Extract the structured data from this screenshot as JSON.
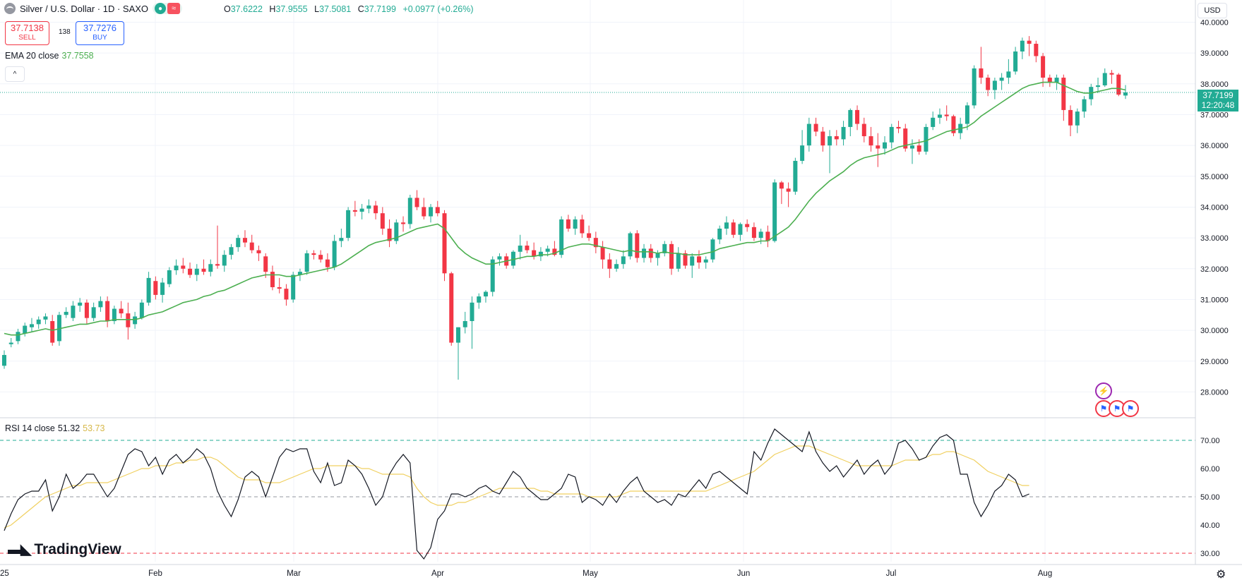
{
  "header": {
    "symbol_title": "Silver / U.S. Dollar · 1D · SAXO",
    "market_status_icon": "●",
    "market_closed_icon": "≈",
    "ohlc": {
      "o_label": "O",
      "o": "37.6222",
      "h_label": "H",
      "h": "37.9555",
      "l_label": "L",
      "l": "37.5081",
      "c_label": "C",
      "c": "37.7199",
      "change": "+0.0977 (+0.26%)"
    }
  },
  "trade": {
    "sell_price": "37.7138",
    "sell_label": "SELL",
    "spread": "138",
    "buy_price": "37.7276",
    "buy_label": "BUY"
  },
  "ema_legend": {
    "label": "EMA 20 close",
    "value": "37.7558"
  },
  "collapse_icon": "^",
  "rsi_legend": {
    "label": "RSI 14 close",
    "value": "51.32",
    "ma_value": "53.73"
  },
  "currency": "USD",
  "last_price": {
    "price": "37.7199",
    "countdown": "12:20:48"
  },
  "brand": "TradingView",
  "colors": {
    "up": "#22ab94",
    "down": "#f23645",
    "ema": "#4caf50",
    "rsi": "#131722",
    "rsi_ma": "#f0d060",
    "grid": "#f0f3fa"
  },
  "chart_data": {
    "type": "candlestick",
    "price_axis": {
      "ticks": [
        "40.0000",
        "39.0000",
        "38.0000",
        "37.0000",
        "36.0000",
        "35.0000",
        "34.0000",
        "33.0000",
        "32.0000",
        "31.0000",
        "30.0000",
        "29.0000",
        "28.0000"
      ],
      "range": [
        27.3,
        40.4
      ]
    },
    "rsi_axis": {
      "ticks": [
        "70.00",
        "60.00",
        "50.00",
        "40.00",
        "30.00"
      ],
      "range": [
        27,
        76
      ],
      "bands": [
        70,
        50,
        30
      ]
    },
    "x_axis": {
      "labels": [
        "25",
        "Feb",
        "Mar",
        "Apr",
        "May",
        "Jun",
        "Jul",
        "Aug"
      ]
    },
    "ohlc": [
      [
        28.85,
        29.35,
        28.75,
        29.2
      ],
      [
        29.55,
        29.75,
        29.45,
        29.6
      ],
      [
        29.65,
        30.05,
        29.55,
        29.95
      ],
      [
        29.9,
        30.25,
        29.8,
        30.15
      ],
      [
        30.1,
        30.4,
        29.95,
        30.2
      ],
      [
        30.2,
        30.45,
        30.05,
        30.35
      ],
      [
        30.35,
        30.55,
        30.2,
        30.45
      ],
      [
        30.3,
        30.5,
        29.5,
        29.6
      ],
      [
        29.65,
        30.6,
        29.5,
        30.5
      ],
      [
        30.5,
        30.75,
        30.4,
        30.6
      ],
      [
        30.4,
        30.95,
        30.3,
        30.8
      ],
      [
        30.8,
        31.05,
        30.6,
        30.9
      ],
      [
        30.9,
        31.0,
        30.2,
        30.4
      ],
      [
        30.4,
        30.9,
        30.3,
        30.75
      ],
      [
        30.75,
        31.1,
        30.6,
        30.95
      ],
      [
        30.95,
        31.1,
        30.1,
        30.3
      ],
      [
        30.3,
        30.8,
        30.2,
        30.7
      ],
      [
        30.7,
        30.95,
        30.4,
        30.55
      ],
      [
        30.55,
        30.9,
        29.7,
        30.1
      ],
      [
        30.2,
        30.6,
        30.05,
        30.45
      ],
      [
        30.4,
        31.0,
        30.35,
        30.9
      ],
      [
        30.9,
        31.9,
        30.8,
        31.7
      ],
      [
        31.6,
        31.75,
        31.0,
        31.15
      ],
      [
        31.15,
        31.7,
        30.9,
        31.55
      ],
      [
        31.5,
        32.05,
        31.4,
        31.95
      ],
      [
        31.95,
        32.3,
        31.8,
        32.1
      ],
      [
        32.1,
        32.35,
        31.85,
        32.0
      ],
      [
        32.0,
        32.2,
        31.7,
        31.8
      ],
      [
        31.8,
        32.15,
        31.6,
        32.0
      ],
      [
        32.0,
        32.3,
        31.8,
        31.9
      ],
      [
        31.9,
        32.3,
        31.75,
        32.15
      ],
      [
        32.15,
        33.4,
        32.0,
        32.1
      ],
      [
        32.1,
        32.6,
        31.9,
        32.45
      ],
      [
        32.45,
        32.8,
        32.3,
        32.7
      ],
      [
        32.7,
        33.1,
        32.55,
        33.0
      ],
      [
        33.0,
        33.25,
        32.7,
        32.85
      ],
      [
        32.85,
        33.1,
        32.5,
        32.6
      ],
      [
        32.6,
        32.75,
        32.25,
        32.5
      ],
      [
        32.4,
        32.5,
        31.7,
        31.9
      ],
      [
        31.9,
        32.1,
        31.3,
        31.4
      ],
      [
        31.4,
        31.7,
        31.2,
        31.35
      ],
      [
        31.35,
        31.5,
        30.8,
        31.0
      ],
      [
        31.0,
        31.9,
        30.9,
        31.8
      ],
      [
        31.8,
        32.0,
        31.6,
        31.9
      ],
      [
        31.9,
        32.6,
        31.8,
        32.5
      ],
      [
        32.5,
        32.6,
        32.3,
        32.45
      ],
      [
        32.45,
        32.6,
        32.2,
        32.3
      ],
      [
        32.3,
        32.5,
        31.9,
        32.05
      ],
      [
        32.05,
        33.1,
        31.95,
        32.9
      ],
      [
        32.9,
        33.3,
        32.7,
        33.0
      ],
      [
        33.0,
        34.0,
        32.9,
        33.9
      ],
      [
        33.9,
        34.2,
        33.7,
        33.85
      ],
      [
        33.85,
        34.1,
        33.6,
        33.95
      ],
      [
        33.95,
        34.25,
        33.8,
        34.05
      ],
      [
        34.05,
        34.2,
        33.6,
        33.8
      ],
      [
        33.8,
        34.0,
        33.1,
        33.3
      ],
      [
        33.3,
        33.6,
        32.7,
        32.9
      ],
      [
        32.9,
        33.6,
        32.8,
        33.5
      ],
      [
        33.5,
        33.7,
        33.2,
        33.45
      ],
      [
        33.45,
        34.4,
        33.3,
        34.3
      ],
      [
        34.3,
        34.55,
        33.9,
        34.0
      ],
      [
        34.0,
        34.3,
        33.6,
        33.7
      ],
      [
        33.7,
        34.1,
        33.5,
        34.0
      ],
      [
        34.0,
        34.2,
        33.7,
        33.8
      ],
      [
        33.8,
        33.9,
        31.6,
        31.85
      ],
      [
        31.85,
        31.9,
        29.5,
        29.6
      ],
      [
        29.6,
        30.1,
        28.4,
        30.1
      ],
      [
        30.1,
        30.6,
        29.9,
        30.3
      ],
      [
        30.3,
        31.1,
        29.4,
        30.9
      ],
      [
        30.9,
        31.2,
        30.7,
        31.1
      ],
      [
        31.1,
        31.3,
        30.9,
        31.25
      ],
      [
        31.25,
        32.4,
        31.1,
        32.3
      ],
      [
        32.3,
        32.5,
        32.1,
        32.4
      ],
      [
        32.4,
        32.5,
        32.0,
        32.1
      ],
      [
        32.1,
        32.6,
        32.0,
        32.55
      ],
      [
        32.55,
        33.1,
        32.3,
        32.75
      ],
      [
        32.75,
        32.9,
        32.5,
        32.6
      ],
      [
        32.6,
        32.85,
        32.3,
        32.4
      ],
      [
        32.4,
        32.7,
        32.25,
        32.55
      ],
      [
        32.55,
        32.75,
        32.4,
        32.65
      ],
      [
        32.65,
        32.9,
        32.4,
        32.45
      ],
      [
        32.45,
        33.7,
        32.35,
        33.6
      ],
      [
        33.6,
        33.75,
        33.2,
        33.3
      ],
      [
        33.3,
        33.7,
        33.1,
        33.6
      ],
      [
        33.6,
        33.75,
        33.0,
        33.15
      ],
      [
        33.15,
        33.4,
        32.9,
        33.0
      ],
      [
        33.0,
        33.2,
        32.5,
        32.7
      ],
      [
        32.7,
        32.9,
        32.0,
        32.3
      ],
      [
        32.3,
        32.5,
        31.7,
        32.0
      ],
      [
        32.0,
        32.3,
        31.9,
        32.15
      ],
      [
        32.15,
        32.6,
        32.0,
        32.4
      ],
      [
        32.4,
        33.2,
        32.3,
        33.15
      ],
      [
        33.15,
        33.25,
        32.2,
        32.35
      ],
      [
        32.35,
        32.8,
        32.2,
        32.65
      ],
      [
        32.65,
        32.8,
        32.2,
        32.35
      ],
      [
        32.35,
        32.6,
        32.1,
        32.5
      ],
      [
        32.5,
        32.9,
        32.4,
        32.8
      ],
      [
        32.8,
        32.9,
        31.8,
        32.0
      ],
      [
        32.0,
        32.7,
        31.9,
        32.5
      ],
      [
        32.5,
        32.6,
        32.0,
        32.1
      ],
      [
        32.1,
        32.5,
        31.7,
        32.4
      ],
      [
        32.4,
        32.6,
        32.0,
        32.2
      ],
      [
        32.2,
        32.4,
        32.0,
        32.3
      ],
      [
        32.3,
        33.0,
        32.2,
        32.95
      ],
      [
        32.95,
        33.4,
        32.8,
        33.3
      ],
      [
        33.3,
        33.7,
        33.1,
        33.5
      ],
      [
        33.5,
        33.6,
        33.0,
        33.1
      ],
      [
        33.1,
        33.5,
        32.9,
        33.45
      ],
      [
        33.45,
        33.6,
        33.2,
        33.35
      ],
      [
        33.35,
        33.5,
        32.9,
        33.0
      ],
      [
        33.0,
        33.3,
        32.8,
        33.2
      ],
      [
        33.2,
        33.4,
        32.7,
        32.9
      ],
      [
        32.9,
        34.9,
        32.85,
        34.8
      ],
      [
        34.8,
        34.85,
        34.1,
        34.6
      ],
      [
        34.6,
        34.8,
        34.0,
        34.5
      ],
      [
        34.5,
        35.6,
        34.4,
        35.5
      ],
      [
        35.5,
        36.5,
        35.4,
        36.0
      ],
      [
        36.0,
        36.9,
        35.8,
        36.7
      ],
      [
        36.7,
        36.9,
        36.3,
        36.45
      ],
      [
        36.45,
        36.6,
        35.8,
        36.0
      ],
      [
        36.0,
        36.5,
        35.1,
        36.3
      ],
      [
        36.3,
        36.5,
        36.0,
        36.2
      ],
      [
        36.2,
        36.8,
        36.0,
        36.6
      ],
      [
        36.6,
        37.2,
        36.3,
        37.15
      ],
      [
        37.15,
        37.3,
        36.5,
        36.7
      ],
      [
        36.7,
        36.9,
        36.1,
        36.3
      ],
      [
        36.3,
        36.6,
        35.8,
        36.0
      ],
      [
        36.0,
        36.4,
        35.3,
        35.9
      ],
      [
        35.9,
        36.3,
        35.7,
        36.1
      ],
      [
        36.1,
        36.7,
        35.9,
        36.6
      ],
      [
        36.6,
        36.8,
        36.4,
        36.55
      ],
      [
        36.55,
        36.7,
        35.8,
        35.9
      ],
      [
        35.9,
        36.2,
        35.4,
        36.0
      ],
      [
        36.0,
        36.2,
        35.7,
        35.8
      ],
      [
        35.8,
        36.7,
        35.7,
        36.6
      ],
      [
        36.6,
        37.1,
        36.5,
        36.9
      ],
      [
        36.9,
        37.2,
        36.7,
        37.0
      ],
      [
        37.0,
        37.3,
        36.8,
        36.95
      ],
      [
        36.95,
        37.0,
        36.3,
        36.4
      ],
      [
        36.4,
        36.9,
        36.2,
        36.7
      ],
      [
        36.7,
        37.4,
        36.5,
        37.3
      ],
      [
        37.3,
        38.6,
        37.2,
        38.5
      ],
      [
        38.5,
        39.2,
        38.0,
        38.2
      ],
      [
        38.2,
        38.3,
        37.6,
        37.8
      ],
      [
        37.8,
        38.2,
        37.5,
        38.1
      ],
      [
        38.1,
        38.35,
        37.8,
        38.2
      ],
      [
        38.2,
        38.8,
        38.0,
        38.4
      ],
      [
        38.4,
        39.2,
        38.3,
        39.05
      ],
      [
        39.05,
        39.5,
        38.8,
        39.4
      ],
      [
        39.4,
        39.55,
        38.9,
        39.3
      ],
      [
        39.3,
        39.4,
        38.7,
        38.9
      ],
      [
        38.9,
        39.0,
        37.9,
        38.2
      ],
      [
        38.2,
        38.3,
        37.9,
        38.05
      ],
      [
        38.05,
        38.3,
        37.8,
        38.2
      ],
      [
        38.2,
        38.3,
        36.8,
        37.15
      ],
      [
        37.15,
        37.3,
        36.3,
        36.65
      ],
      [
        36.65,
        37.2,
        36.4,
        37.1
      ],
      [
        37.1,
        37.6,
        36.9,
        37.5
      ],
      [
        37.5,
        38.0,
        37.3,
        37.9
      ],
      [
        37.9,
        38.2,
        37.7,
        37.95
      ],
      [
        37.95,
        38.5,
        37.9,
        38.35
      ],
      [
        38.35,
        38.45,
        38.0,
        38.3
      ],
      [
        38.3,
        38.35,
        37.6,
        37.65
      ],
      [
        37.62,
        37.96,
        37.51,
        37.72
      ]
    ],
    "ema20": [
      29.9,
      29.85,
      29.85,
      29.9,
      29.95,
      30.0,
      30.05,
      30.0,
      30.05,
      30.1,
      30.15,
      30.2,
      30.2,
      30.25,
      30.3,
      30.3,
      30.35,
      30.35,
      30.35,
      30.35,
      30.4,
      30.5,
      30.55,
      30.6,
      30.7,
      30.8,
      30.9,
      30.95,
      31.0,
      31.1,
      31.15,
      31.25,
      31.3,
      31.4,
      31.5,
      31.6,
      31.7,
      31.75,
      31.8,
      31.8,
      31.8,
      31.75,
      31.75,
      31.8,
      31.85,
      31.9,
      31.95,
      32.0,
      32.05,
      32.15,
      32.3,
      32.45,
      32.6,
      32.75,
      32.85,
      32.9,
      32.95,
      33.0,
      33.1,
      33.2,
      33.3,
      33.35,
      33.4,
      33.45,
      33.3,
      33.0,
      32.7,
      32.5,
      32.35,
      32.25,
      32.15,
      32.15,
      32.2,
      32.25,
      32.3,
      32.35,
      32.4,
      32.4,
      32.45,
      32.45,
      32.5,
      32.6,
      32.7,
      32.75,
      32.8,
      32.8,
      32.75,
      32.7,
      32.65,
      32.6,
      32.55,
      32.6,
      32.55,
      32.55,
      32.55,
      32.5,
      32.55,
      32.5,
      32.5,
      32.45,
      32.45,
      32.45,
      32.5,
      32.55,
      32.65,
      32.7,
      32.75,
      32.8,
      32.85,
      32.85,
      32.9,
      32.9,
      33.05,
      33.2,
      33.35,
      33.6,
      33.9,
      34.2,
      34.45,
      34.65,
      34.85,
      35.0,
      35.15,
      35.35,
      35.5,
      35.6,
      35.65,
      35.7,
      35.75,
      35.85,
      35.95,
      36.0,
      36.05,
      36.1,
      36.15,
      36.25,
      36.35,
      36.45,
      36.5,
      36.55,
      36.6,
      36.75,
      36.95,
      37.1,
      37.25,
      37.4,
      37.55,
      37.7,
      37.85,
      37.95,
      38.0,
      38.05,
      38.05,
      38.05,
      37.95,
      37.85,
      37.75,
      37.7,
      37.7,
      37.75,
      37.8,
      37.85,
      37.85,
      37.8
    ],
    "rsi": [
      38,
      44,
      49,
      51,
      52,
      52,
      56,
      45,
      50,
      58,
      53,
      55,
      58,
      58,
      54,
      50,
      53,
      59,
      65,
      67,
      66,
      61,
      64,
      58,
      63,
      65,
      62,
      64,
      67,
      65,
      60,
      52,
      47,
      43,
      49,
      57,
      59,
      57,
      50,
      57,
      64,
      67,
      66,
      67,
      67,
      59,
      55,
      62,
      54,
      55,
      63,
      61,
      58,
      53,
      47,
      50,
      58,
      62,
      65,
      62,
      31,
      28,
      32,
      42,
      45,
      51,
      51,
      50,
      51,
      53,
      54,
      52,
      51,
      55,
      59,
      57,
      53,
      51,
      49,
      49,
      51,
      53,
      58,
      57,
      48,
      50,
      49,
      47,
      51,
      48,
      52,
      55,
      57,
      52,
      50,
      48,
      49,
      47,
      51,
      50,
      53,
      56,
      53,
      58,
      59,
      57,
      55,
      53,
      51,
      66,
      63,
      69,
      74,
      72,
      70,
      68,
      66,
      73,
      66,
      62,
      59,
      61,
      57,
      60,
      63,
      58,
      61,
      63,
      58,
      61,
      69,
      70,
      67,
      63,
      64,
      68,
      71,
      72,
      70,
      58,
      58,
      48,
      43,
      47,
      52,
      54,
      58,
      56,
      50,
      51
    ],
    "rsi_ma": [
      39,
      40,
      42,
      44,
      46,
      48,
      50,
      51,
      52,
      53,
      54,
      54,
      55,
      55,
      55,
      55,
      56,
      57,
      58,
      59,
      60,
      60,
      61,
      61,
      61,
      62,
      62,
      63,
      63,
      64,
      64,
      63,
      61,
      59,
      57,
      56,
      56,
      56,
      55,
      55,
      55,
      56,
      57,
      58,
      59,
      60,
      60,
      61,
      61,
      61,
      61,
      61,
      60,
      60,
      59,
      58,
      58,
      58,
      58,
      57,
      53,
      50,
      48,
      47,
      47,
      47,
      48,
      48,
      49,
      50,
      51,
      52,
      53,
      53,
      53,
      53,
      53,
      53,
      52,
      52,
      51,
      51,
      51,
      51,
      51,
      50,
      50,
      50,
      50,
      50,
      51,
      52,
      52,
      52,
      52,
      52,
      52,
      52,
      52,
      52,
      52,
      52,
      52,
      53,
      54,
      55,
      56,
      57,
      58,
      59,
      61,
      63,
      65,
      66,
      67,
      68,
      68,
      68,
      67,
      66,
      65,
      64,
      63,
      62,
      61,
      61,
      61,
      61,
      61,
      61,
      62,
      63,
      63,
      63,
      64,
      65,
      65,
      66,
      66,
      65,
      64,
      63,
      61,
      59,
      58,
      57,
      56,
      55,
      54,
      54
    ]
  }
}
